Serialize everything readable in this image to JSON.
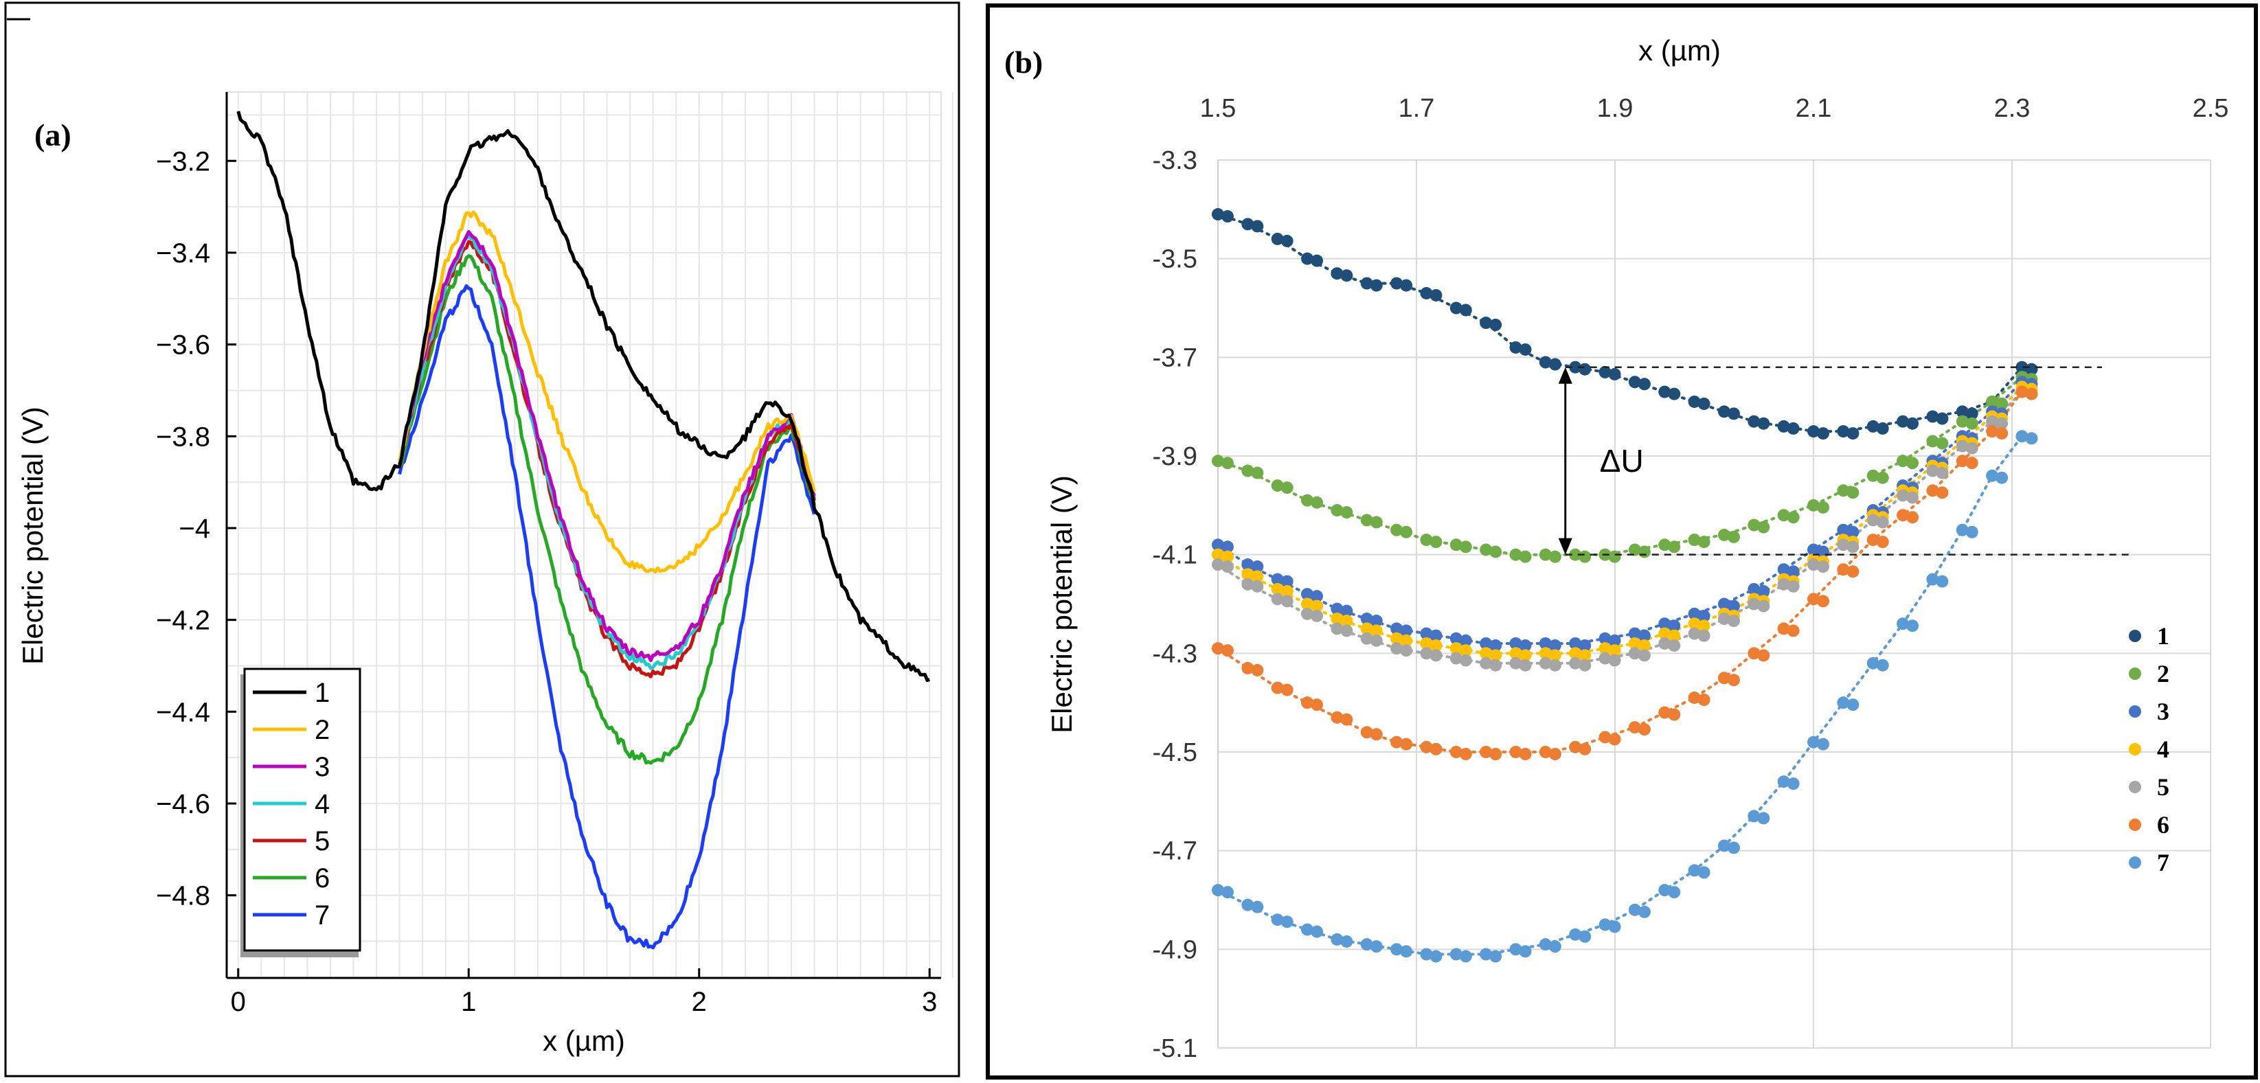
{
  "chart_data": [
    {
      "panel": "(a)",
      "type": "line",
      "title": "",
      "xlabel": "x (µm)",
      "ylabel": "Electric potential (V)",
      "xlim": [
        -0.05,
        3.05
      ],
      "ylim": [
        -4.98,
        -3.05
      ],
      "xticks": [
        0,
        1,
        2,
        3
      ],
      "xtick_labels": [
        "0",
        "1",
        "2",
        "3"
      ],
      "yticks": [
        -3.2,
        -3.4,
        -3.6,
        -3.8,
        -4.0,
        -4.2,
        -4.4,
        -4.6,
        -4.8
      ],
      "ytick_labels": [
        "−3.2",
        "−3.4",
        "−3.6",
        "−3.8",
        "−4",
        "−4.2",
        "−4.4",
        "−4.6",
        "−4.8"
      ],
      "grid": true,
      "legend_position": "bottom-left",
      "series": [
        {
          "name": "1",
          "color": "#000000",
          "x": [
            0,
            0.1,
            0.2,
            0.3,
            0.4,
            0.5,
            0.6,
            0.7,
            0.8,
            0.9,
            1.0,
            1.1,
            1.2,
            1.3,
            1.4,
            1.5,
            1.6,
            1.7,
            1.8,
            1.9,
            2.0,
            2.1,
            2.2,
            2.3,
            2.4,
            2.5,
            2.6,
            2.7,
            2.8,
            2.9,
            3.0
          ],
          "values": [
            -3.1,
            -3.16,
            -3.3,
            -3.55,
            -3.78,
            -3.9,
            -3.92,
            -3.86,
            -3.62,
            -3.3,
            -3.18,
            -3.15,
            -3.14,
            -3.22,
            -3.35,
            -3.45,
            -3.56,
            -3.65,
            -3.72,
            -3.78,
            -3.82,
            -3.85,
            -3.8,
            -3.72,
            -3.76,
            -3.95,
            -4.1,
            -4.2,
            -4.25,
            -4.3,
            -4.33
          ]
        },
        {
          "name": "2",
          "color": "#ffbf00",
          "x": [
            0.7,
            0.8,
            0.9,
            1.0,
            1.1,
            1.2,
            1.3,
            1.4,
            1.5,
            1.6,
            1.7,
            1.8,
            1.9,
            2.0,
            2.1,
            2.2,
            2.3,
            2.4,
            2.5
          ],
          "values": [
            -3.86,
            -3.62,
            -3.42,
            -3.31,
            -3.36,
            -3.5,
            -3.66,
            -3.8,
            -3.92,
            -4.02,
            -4.08,
            -4.1,
            -4.08,
            -4.04,
            -3.98,
            -3.88,
            -3.78,
            -3.75,
            -3.92
          ]
        },
        {
          "name": "3",
          "color": "#c000c0",
          "x": [
            0.7,
            0.8,
            0.9,
            1.0,
            1.1,
            1.2,
            1.3,
            1.4,
            1.5,
            1.6,
            1.7,
            1.8,
            1.9,
            2.0,
            2.1,
            2.2,
            2.3,
            2.4,
            2.5
          ],
          "values": [
            -3.86,
            -3.64,
            -3.46,
            -3.35,
            -3.42,
            -3.6,
            -3.8,
            -3.98,
            -4.12,
            -4.22,
            -4.27,
            -4.28,
            -4.26,
            -4.2,
            -4.08,
            -3.92,
            -3.8,
            -3.76,
            -3.93
          ]
        },
        {
          "name": "4",
          "color": "#22cccc",
          "x": [
            0.7,
            0.8,
            0.9,
            1.0,
            1.1,
            1.2,
            1.3,
            1.4,
            1.5,
            1.6,
            1.7,
            1.8,
            1.9,
            2.0,
            2.1,
            2.2,
            2.3,
            2.4,
            2.5
          ],
          "values": [
            -3.86,
            -3.65,
            -3.47,
            -3.36,
            -3.43,
            -3.61,
            -3.81,
            -3.99,
            -4.13,
            -4.23,
            -4.28,
            -4.3,
            -4.28,
            -4.21,
            -4.09,
            -3.93,
            -3.8,
            -3.76,
            -3.93
          ]
        },
        {
          "name": "5",
          "color": "#cc1111",
          "x": [
            0.7,
            0.8,
            0.9,
            1.0,
            1.1,
            1.2,
            1.3,
            1.4,
            1.5,
            1.6,
            1.7,
            1.8,
            1.9,
            2.0,
            2.1,
            2.2,
            2.3,
            2.4,
            2.5
          ],
          "values": [
            -3.86,
            -3.66,
            -3.48,
            -3.37,
            -3.44,
            -3.62,
            -3.82,
            -4.0,
            -4.14,
            -4.24,
            -4.3,
            -4.32,
            -4.3,
            -4.22,
            -4.1,
            -3.94,
            -3.81,
            -3.77,
            -3.94
          ]
        },
        {
          "name": "6",
          "color": "#22aa22",
          "x": [
            0.7,
            0.8,
            0.9,
            1.0,
            1.1,
            1.2,
            1.3,
            1.4,
            1.5,
            1.6,
            1.7,
            1.8,
            1.9,
            2.0,
            2.1,
            2.2,
            2.3,
            2.4,
            2.5
          ],
          "values": [
            -3.87,
            -3.68,
            -3.5,
            -3.4,
            -3.5,
            -3.72,
            -3.96,
            -4.16,
            -4.32,
            -4.43,
            -4.49,
            -4.51,
            -4.48,
            -4.38,
            -4.2,
            -3.98,
            -3.82,
            -3.78,
            -3.95
          ]
        },
        {
          "name": "7",
          "color": "#1a3cff",
          "x": [
            0.7,
            0.8,
            0.9,
            1.0,
            1.1,
            1.2,
            1.3,
            1.4,
            1.5,
            1.6,
            1.7,
            1.8,
            1.9,
            2.0,
            2.1,
            2.2,
            2.3,
            2.4,
            2.5
          ],
          "values": [
            -3.88,
            -3.72,
            -3.55,
            -3.47,
            -3.6,
            -3.88,
            -4.2,
            -4.48,
            -4.68,
            -4.82,
            -4.9,
            -4.91,
            -4.86,
            -4.72,
            -4.48,
            -4.16,
            -3.86,
            -3.8,
            -3.97
          ]
        }
      ]
    },
    {
      "panel": "(b)",
      "type": "scatter",
      "title": "",
      "xlabel": "x (µm)",
      "ylabel": "Electric potential (V)",
      "xlim": [
        1.5,
        2.5
      ],
      "ylim": [
        -5.1,
        -3.3
      ],
      "xticks": [
        1.5,
        1.7,
        1.9,
        2.1,
        2.3,
        2.5
      ],
      "xtick_labels": [
        "1.5",
        "1.7",
        "1.9",
        "2.1",
        "2.3",
        "2.5"
      ],
      "yticks": [
        -3.3,
        -3.5,
        -3.7,
        -3.9,
        -4.1,
        -4.3,
        -4.5,
        -4.7,
        -4.9,
        -5.1
      ],
      "ytick_labels": [
        "-3.3",
        "-3.5",
        "-3.7",
        "-3.9",
        "-4.1",
        "-4.3",
        "-4.5",
        "-4.7",
        "-4.9",
        "-5.1"
      ],
      "x_axis_position": "top",
      "grid": true,
      "legend_position": "right",
      "annotation": {
        "text": "ΔU",
        "from_y": -3.72,
        "to_y": -4.1,
        "at_x": 1.85
      },
      "reference_lines": [
        -3.72,
        -4.1
      ],
      "series": [
        {
          "name": "1",
          "color": "#1f4e79",
          "x": [
            1.5,
            1.53,
            1.56,
            1.59,
            1.62,
            1.65,
            1.68,
            1.71,
            1.74,
            1.77,
            1.8,
            1.83,
            1.86,
            1.89,
            1.92,
            1.95,
            1.98,
            2.01,
            2.04,
            2.07,
            2.1,
            2.13,
            2.16,
            2.19,
            2.22,
            2.25,
            2.28,
            2.31
          ],
          "values": [
            -3.41,
            -3.43,
            -3.46,
            -3.5,
            -3.53,
            -3.55,
            -3.55,
            -3.57,
            -3.6,
            -3.63,
            -3.68,
            -3.71,
            -3.72,
            -3.73,
            -3.75,
            -3.77,
            -3.79,
            -3.81,
            -3.83,
            -3.84,
            -3.85,
            -3.85,
            -3.84,
            -3.83,
            -3.82,
            -3.81,
            -3.79,
            -3.72
          ]
        },
        {
          "name": "2",
          "color": "#70ad47",
          "x": [
            1.5,
            1.53,
            1.56,
            1.59,
            1.62,
            1.65,
            1.68,
            1.71,
            1.74,
            1.77,
            1.8,
            1.83,
            1.86,
            1.89,
            1.92,
            1.95,
            1.98,
            2.01,
            2.04,
            2.07,
            2.1,
            2.13,
            2.16,
            2.19,
            2.22,
            2.25,
            2.28,
            2.31
          ],
          "values": [
            -3.91,
            -3.93,
            -3.96,
            -3.99,
            -4.01,
            -4.03,
            -4.05,
            -4.07,
            -4.08,
            -4.09,
            -4.1,
            -4.1,
            -4.1,
            -4.1,
            -4.09,
            -4.08,
            -4.07,
            -4.06,
            -4.04,
            -4.02,
            -4.0,
            -3.97,
            -3.94,
            -3.91,
            -3.87,
            -3.83,
            -3.79,
            -3.74
          ]
        },
        {
          "name": "3",
          "color": "#4472c4",
          "x": [
            1.5,
            1.53,
            1.56,
            1.59,
            1.62,
            1.65,
            1.68,
            1.71,
            1.74,
            1.77,
            1.8,
            1.83,
            1.86,
            1.89,
            1.92,
            1.95,
            1.98,
            2.01,
            2.04,
            2.07,
            2.1,
            2.13,
            2.16,
            2.19,
            2.22,
            2.25,
            2.28,
            2.31
          ],
          "values": [
            -4.08,
            -4.12,
            -4.15,
            -4.18,
            -4.21,
            -4.23,
            -4.25,
            -4.26,
            -4.27,
            -4.28,
            -4.28,
            -4.28,
            -4.28,
            -4.27,
            -4.26,
            -4.24,
            -4.22,
            -4.2,
            -4.17,
            -4.13,
            -4.09,
            -4.05,
            -4.01,
            -3.96,
            -3.91,
            -3.86,
            -3.81,
            -3.75
          ]
        },
        {
          "name": "4",
          "color": "#ffc000",
          "x": [
            1.5,
            1.53,
            1.56,
            1.59,
            1.62,
            1.65,
            1.68,
            1.71,
            1.74,
            1.77,
            1.8,
            1.83,
            1.86,
            1.89,
            1.92,
            1.95,
            1.98,
            2.01,
            2.04,
            2.07,
            2.1,
            2.13,
            2.16,
            2.19,
            2.22,
            2.25,
            2.28,
            2.31
          ],
          "values": [
            -4.1,
            -4.14,
            -4.17,
            -4.2,
            -4.23,
            -4.25,
            -4.27,
            -4.28,
            -4.29,
            -4.3,
            -4.3,
            -4.3,
            -4.3,
            -4.29,
            -4.28,
            -4.26,
            -4.24,
            -4.22,
            -4.19,
            -4.15,
            -4.11,
            -4.07,
            -4.02,
            -3.97,
            -3.92,
            -3.87,
            -3.82,
            -3.76
          ]
        },
        {
          "name": "5",
          "color": "#a5a5a5",
          "x": [
            1.5,
            1.53,
            1.56,
            1.59,
            1.62,
            1.65,
            1.68,
            1.71,
            1.74,
            1.77,
            1.8,
            1.83,
            1.86,
            1.89,
            1.92,
            1.95,
            1.98,
            2.01,
            2.04,
            2.07,
            2.1,
            2.13,
            2.16,
            2.19,
            2.22,
            2.25,
            2.28,
            2.31
          ],
          "values": [
            -4.12,
            -4.16,
            -4.19,
            -4.22,
            -4.25,
            -4.27,
            -4.29,
            -4.3,
            -4.31,
            -4.32,
            -4.32,
            -4.32,
            -4.32,
            -4.31,
            -4.3,
            -4.28,
            -4.26,
            -4.23,
            -4.2,
            -4.16,
            -4.12,
            -4.08,
            -4.03,
            -3.98,
            -3.93,
            -3.88,
            -3.83,
            -3.77
          ]
        },
        {
          "name": "6",
          "color": "#ed7d31",
          "x": [
            1.5,
            1.53,
            1.56,
            1.59,
            1.62,
            1.65,
            1.68,
            1.71,
            1.74,
            1.77,
            1.8,
            1.83,
            1.86,
            1.89,
            1.92,
            1.95,
            1.98,
            2.01,
            2.04,
            2.07,
            2.1,
            2.13,
            2.16,
            2.19,
            2.22,
            2.25,
            2.28,
            2.31
          ],
          "values": [
            -4.29,
            -4.33,
            -4.37,
            -4.4,
            -4.43,
            -4.46,
            -4.48,
            -4.49,
            -4.5,
            -4.5,
            -4.5,
            -4.5,
            -4.49,
            -4.47,
            -4.45,
            -4.42,
            -4.39,
            -4.35,
            -4.3,
            -4.25,
            -4.19,
            -4.13,
            -4.07,
            -4.02,
            -3.97,
            -3.91,
            -3.85,
            -3.77
          ]
        },
        {
          "name": "7",
          "color": "#5b9bd5",
          "x": [
            1.5,
            1.53,
            1.56,
            1.59,
            1.62,
            1.65,
            1.68,
            1.71,
            1.74,
            1.77,
            1.8,
            1.83,
            1.86,
            1.89,
            1.92,
            1.95,
            1.98,
            2.01,
            2.04,
            2.07,
            2.1,
            2.13,
            2.16,
            2.19,
            2.22,
            2.25,
            2.28,
            2.31
          ],
          "values": [
            -4.78,
            -4.81,
            -4.84,
            -4.86,
            -4.88,
            -4.89,
            -4.9,
            -4.91,
            -4.91,
            -4.91,
            -4.9,
            -4.89,
            -4.87,
            -4.85,
            -4.82,
            -4.78,
            -4.74,
            -4.69,
            -4.63,
            -4.56,
            -4.48,
            -4.4,
            -4.32,
            -4.24,
            -4.15,
            -4.05,
            -3.94,
            -3.86
          ]
        }
      ]
    }
  ]
}
